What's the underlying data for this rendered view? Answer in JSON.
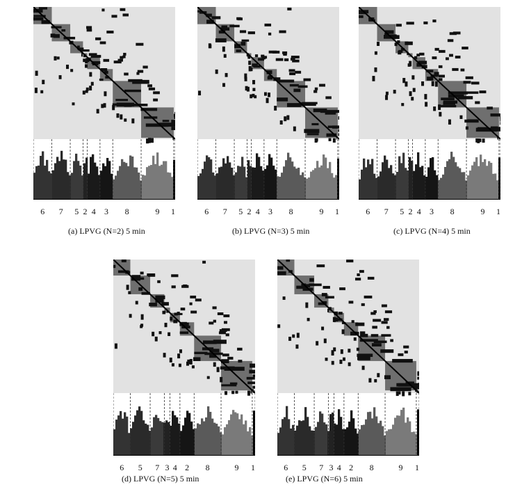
{
  "chart_data": [
    {
      "type": "heatmap",
      "id": "a",
      "caption": "(a) LPVG (N=2) 5 min",
      "method": "LPVG",
      "N": "2",
      "interval": "5 min",
      "cluster_order": [
        "6",
        "7",
        "5",
        "2",
        "4",
        "3",
        "8",
        "9",
        "1"
      ],
      "cluster_sizes_pct": [
        13,
        13,
        9,
        3,
        9,
        9,
        20,
        23,
        1
      ]
    },
    {
      "type": "heatmap",
      "id": "b",
      "caption": "(b) LPVG (N=3) 5 min",
      "method": "LPVG",
      "N": "3",
      "interval": "5 min",
      "cluster_order": [
        "6",
        "7",
        "5",
        "2",
        "4",
        "3",
        "8",
        "9",
        "1"
      ],
      "cluster_sizes_pct": [
        13,
        13,
        9,
        3,
        9,
        9,
        20,
        23,
        1
      ]
    },
    {
      "type": "heatmap",
      "id": "c",
      "caption": "(c) LPVG (N=4) 5 min",
      "method": "LPVG",
      "N": "4",
      "interval": "5 min",
      "cluster_order": [
        "6",
        "7",
        "5",
        "2",
        "4",
        "3",
        "8",
        "9",
        "1"
      ],
      "cluster_sizes_pct": [
        13,
        13,
        9,
        3,
        9,
        9,
        20,
        23,
        1
      ]
    },
    {
      "type": "heatmap",
      "id": "d",
      "caption": "(d) LPVG (N=5) 5 min",
      "method": "LPVG",
      "N": "5",
      "interval": "5 min",
      "cluster_order": [
        "6",
        "5",
        "7",
        "3",
        "4",
        "2",
        "8",
        "9",
        "1"
      ],
      "cluster_sizes_pct": [
        12,
        14,
        10,
        4,
        7,
        10,
        19,
        22,
        2
      ]
    },
    {
      "type": "heatmap",
      "id": "e",
      "caption": "(e) LPVG (N=6) 5 min",
      "method": "LPVG",
      "N": "6",
      "interval": "5 min",
      "cluster_order": [
        "6",
        "5",
        "7",
        "3",
        "4",
        "2",
        "8",
        "9",
        "1"
      ],
      "cluster_sizes_pct": [
        12,
        14,
        10,
        4,
        7,
        10,
        19,
        22,
        2
      ]
    }
  ]
}
